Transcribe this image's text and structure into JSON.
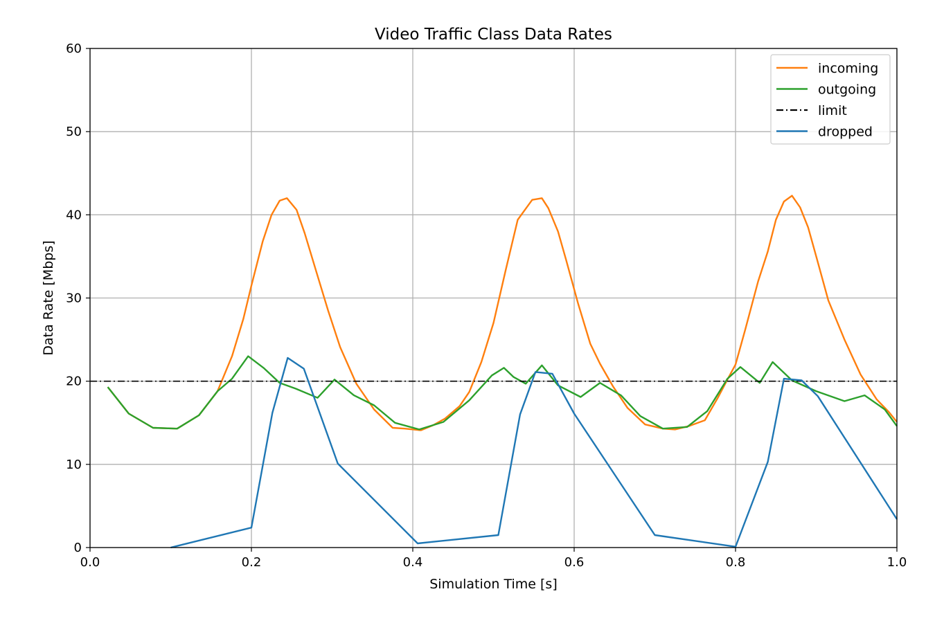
{
  "chart_data": {
    "type": "line",
    "title": "Video Traffic Class Data Rates",
    "xlabel": "Simulation Time [s]",
    "ylabel": "Data Rate [Mbps]",
    "xlim": [
      0.0,
      1.0
    ],
    "ylim": [
      0,
      60
    ],
    "xticks": [
      "0.0",
      "0.2",
      "0.4",
      "0.6",
      "0.8",
      "1.0"
    ],
    "yticks": [
      "0",
      "10",
      "20",
      "30",
      "40",
      "50",
      "60"
    ],
    "grid": true,
    "legend_position": "top-right",
    "colors": {
      "incoming": "#ff7f0e",
      "outgoing": "#2ca02c",
      "limit": "#000000",
      "dropped": "#1f77b4"
    },
    "series": [
      {
        "name": "incoming",
        "color": "#ff7f0e",
        "style": "solid",
        "x": [
          0.022,
          0.048,
          0.078,
          0.108,
          0.135,
          0.158,
          0.176,
          0.19,
          0.2,
          0.214,
          0.225,
          0.235,
          0.244,
          0.256,
          0.266,
          0.28,
          0.295,
          0.31,
          0.33,
          0.352,
          0.375,
          0.39,
          0.41,
          0.425,
          0.44,
          0.458,
          0.47,
          0.485,
          0.5,
          0.515,
          0.53,
          0.548,
          0.56,
          0.568,
          0.58,
          0.59,
          0.605,
          0.62,
          0.632,
          0.648,
          0.666,
          0.688,
          0.71,
          0.725,
          0.742,
          0.762,
          0.778,
          0.79,
          0.8,
          0.812,
          0.828,
          0.84,
          0.85,
          0.86,
          0.87,
          0.88,
          0.89,
          0.9,
          0.915,
          0.935,
          0.955,
          0.975,
          0.99,
          1.0
        ],
        "y": [
          19.3,
          16.1,
          14.4,
          14.3,
          15.9,
          18.8,
          23.0,
          27.5,
          31.5,
          36.8,
          40.0,
          41.7,
          42.0,
          40.6,
          37.8,
          33.3,
          28.5,
          24.1,
          19.7,
          16.6,
          14.4,
          14.3,
          14.1,
          14.7,
          15.5,
          17.0,
          18.7,
          22.3,
          27.0,
          33.3,
          39.4,
          41.8,
          42.0,
          40.8,
          38.0,
          34.6,
          29.3,
          24.5,
          22.1,
          19.4,
          16.8,
          14.8,
          14.3,
          14.2,
          14.6,
          15.3,
          18.0,
          20.2,
          22.0,
          26.2,
          32.0,
          35.6,
          39.4,
          41.6,
          42.3,
          40.9,
          38.5,
          35.0,
          29.7,
          25.0,
          20.8,
          17.8,
          16.3,
          15.1
        ]
      },
      {
        "name": "outgoing",
        "color": "#2ca02c",
        "style": "solid",
        "x": [
          0.022,
          0.048,
          0.078,
          0.108,
          0.135,
          0.158,
          0.176,
          0.196,
          0.215,
          0.235,
          0.255,
          0.282,
          0.303,
          0.327,
          0.352,
          0.378,
          0.408,
          0.438,
          0.47,
          0.498,
          0.513,
          0.525,
          0.54,
          0.56,
          0.58,
          0.608,
          0.632,
          0.658,
          0.682,
          0.71,
          0.74,
          0.765,
          0.79,
          0.806,
          0.83,
          0.846,
          0.87,
          0.9,
          0.935,
          0.96,
          0.985,
          1.0
        ],
        "y": [
          19.3,
          16.1,
          14.4,
          14.3,
          15.9,
          18.8,
          20.3,
          23.0,
          21.6,
          19.8,
          19.1,
          18.0,
          20.2,
          18.3,
          17.1,
          15.0,
          14.2,
          15.1,
          17.7,
          20.7,
          21.6,
          20.5,
          19.7,
          21.9,
          19.5,
          18.1,
          19.8,
          18.3,
          15.8,
          14.3,
          14.5,
          16.4,
          20.3,
          21.7,
          19.8,
          22.3,
          20.1,
          18.8,
          17.6,
          18.3,
          16.6,
          14.6
        ]
      },
      {
        "name": "limit",
        "color": "#000000",
        "style": "dashdot",
        "x": [
          0.0,
          1.0
        ],
        "y": [
          20,
          20
        ]
      },
      {
        "name": "dropped",
        "color": "#1f77b4",
        "style": "solid",
        "x": [
          0.1,
          0.2,
          0.226,
          0.245,
          0.265,
          0.307,
          0.406,
          0.506,
          0.533,
          0.552,
          0.573,
          0.6,
          0.7,
          0.8,
          0.84,
          0.86,
          0.882,
          0.902,
          1.0
        ],
        "y": [
          0,
          2.4,
          16.2,
          22.8,
          21.5,
          10.1,
          0.5,
          1.5,
          16.0,
          21.1,
          20.9,
          16.1,
          1.5,
          0.1,
          10.3,
          20.3,
          20.1,
          18.2,
          3.4
        ]
      }
    ]
  }
}
